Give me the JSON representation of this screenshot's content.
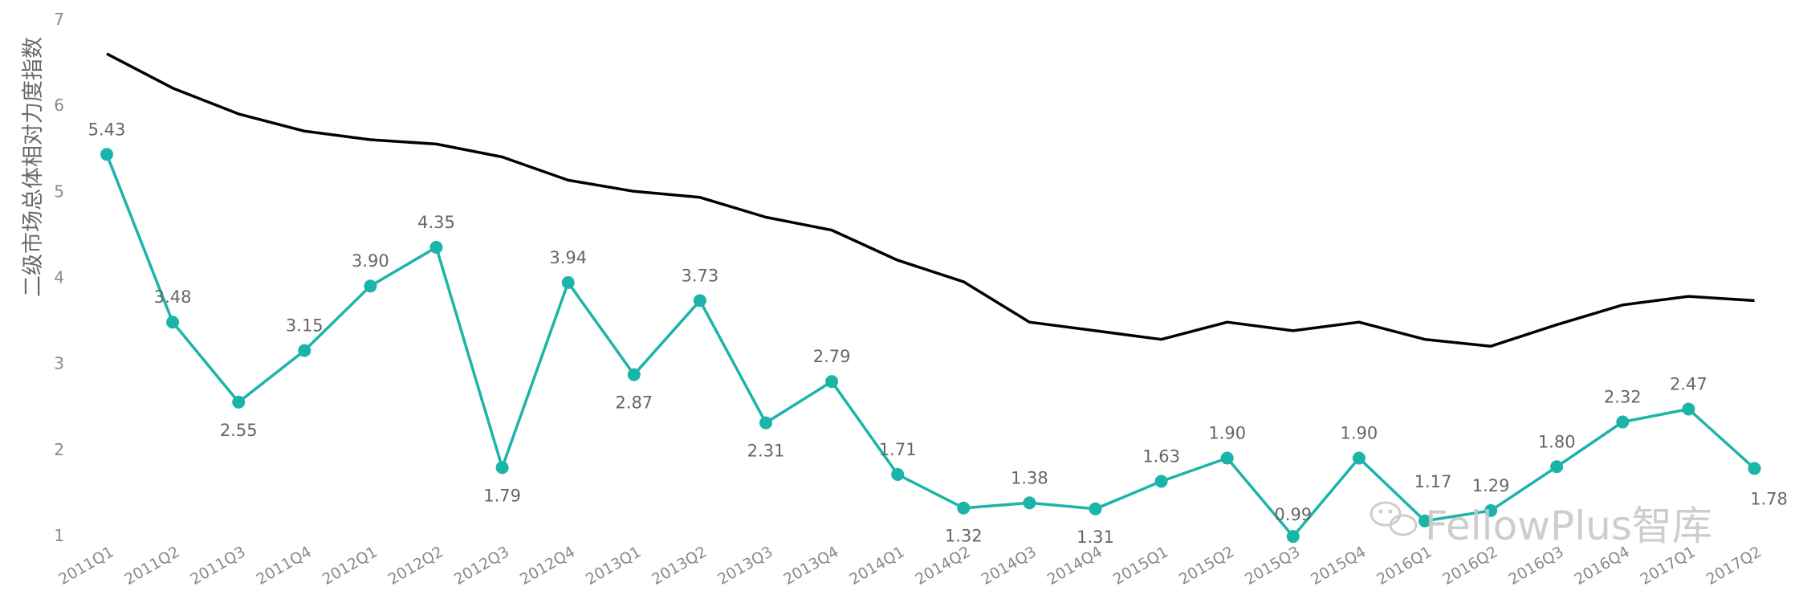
{
  "chart_data": {
    "type": "line",
    "ylabel": "二级市场总体相对力度指数",
    "xlabel": "",
    "ylim": [
      1,
      7
    ],
    "yticks": [
      "1",
      "2",
      "3",
      "4",
      "5",
      "6",
      "7"
    ],
    "grid": false,
    "categories": [
      "2011Q1",
      "2011Q2",
      "2011Q3",
      "2011Q4",
      "2012Q1",
      "2012Q2",
      "2012Q3",
      "2012Q4",
      "2013Q1",
      "2013Q2",
      "2013Q3",
      "2013Q4",
      "2014Q1",
      "2014Q2",
      "2014Q3",
      "2014Q4",
      "2015Q1",
      "2015Q2",
      "2015Q3",
      "2015Q4",
      "2016Q1",
      "2016Q2",
      "2016Q3",
      "2016Q4",
      "2017Q1",
      "2017Q2"
    ],
    "series": [
      {
        "color": "#1ab5a8",
        "markers": true,
        "values": [
          5.43,
          3.48,
          2.55,
          3.15,
          3.9,
          4.35,
          1.79,
          3.94,
          2.87,
          3.73,
          2.31,
          2.79,
          1.71,
          1.32,
          1.38,
          1.31,
          1.63,
          1.9,
          0.99,
          1.9,
          1.17,
          1.29,
          1.8,
          2.32,
          2.47,
          1.78
        ],
        "labels": [
          "5.43",
          "3.48",
          "2.55",
          "3.15",
          "3.90",
          "4.35",
          "1.79",
          "3.94",
          "2.87",
          "3.73",
          "2.31",
          "2.79",
          "1.71",
          "1.32",
          "1.38",
          "1.31",
          "1.63",
          "1.90",
          "0.99",
          "1.90",
          "1.17",
          "1.29",
          "1.80",
          "2.32",
          "2.47",
          "1.78"
        ]
      },
      {
        "color": "#000000",
        "markers": false,
        "values": [
          6.6,
          6.2,
          5.9,
          5.7,
          5.6,
          5.55,
          5.4,
          5.13,
          5.0,
          4.93,
          4.7,
          4.55,
          4.2,
          3.95,
          3.48,
          3.38,
          3.28,
          3.48,
          3.38,
          3.48,
          3.28,
          3.2,
          3.45,
          3.68,
          3.78,
          3.73
        ]
      }
    ]
  },
  "watermark": {
    "text": "FellowPlus智库",
    "icon": "wechat-icon"
  }
}
